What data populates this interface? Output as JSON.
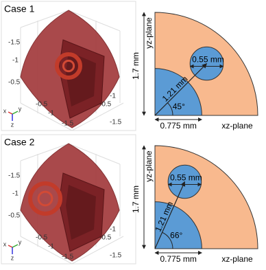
{
  "panels": [
    {
      "label": "Case 1",
      "plot": {
        "z_ticks": [
          "-1.5",
          "-1",
          "-0.5"
        ],
        "x_ticks": [
          "-0.5",
          "-1",
          "-1.5"
        ],
        "y_ticks": [
          "-0.5",
          "-1",
          "-1.5"
        ],
        "axes": [
          "x",
          "y",
          "z"
        ]
      },
      "diagram": {
        "vertical_axis": "yz-plane",
        "horizontal_axis": "xz-plane",
        "height": "1.7 mm",
        "inner_radius": "0.775 mm",
        "circle_diameter": "0.55 mm",
        "distance": "1.21 mm",
        "angle": "45°"
      }
    },
    {
      "label": "Case 2",
      "plot": {
        "z_ticks": [
          "-1.5",
          "-1",
          "-0.5"
        ],
        "x_ticks": [
          "-0.5",
          "-1",
          "-1.5"
        ],
        "y_ticks": [
          "-0.5",
          "-1",
          "-1.5"
        ],
        "axes": [
          "x",
          "y",
          "z"
        ]
      },
      "diagram": {
        "vertical_axis": "yz-plane",
        "horizontal_axis": "xz-plane",
        "height": "1.7 mm",
        "inner_radius": "0.775 mm",
        "circle_diameter": "0.55 mm",
        "distance": "1.21 mm",
        "angle": "66°"
      }
    }
  ]
}
